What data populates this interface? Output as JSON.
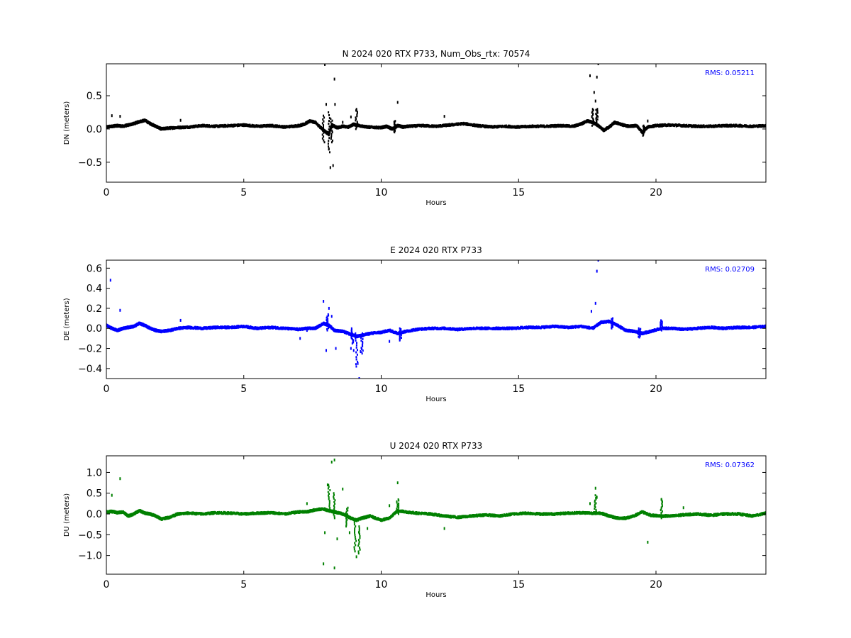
{
  "chart_data": [
    {
      "type": "scatter",
      "title": "N 2024 020 RTX  P733, Num_Obs_rtx: 70574",
      "xlabel": "Hours",
      "ylabel": "DN (meters)",
      "xlim": [
        0,
        24
      ],
      "ylim": [
        -0.8,
        0.98
      ],
      "xticks": [
        0,
        5,
        10,
        15,
        20
      ],
      "xtick_labels": [
        "0",
        "5",
        "10",
        "15",
        "20"
      ],
      "yticks": [
        -0.5,
        0.0,
        0.5
      ],
      "ytick_labels": [
        "−0.5",
        "0.0",
        "0.5"
      ],
      "color": "#000000",
      "grid": false,
      "annotation": "RMS:  0.05211",
      "annotation_color": "#0000ff",
      "series": [
        {
          "x": [
            0.0,
            0.2,
            0.4,
            0.6,
            0.8,
            1.0,
            1.2,
            1.4,
            1.6,
            1.8,
            2.0,
            2.2,
            2.5,
            3.0,
            3.5,
            4.0,
            4.5,
            5.0,
            5.5,
            6.0,
            6.5,
            7.0,
            7.2,
            7.4,
            7.6,
            7.8,
            8.0,
            8.1,
            8.2,
            8.4,
            8.6,
            8.8,
            9.0,
            9.2,
            9.5,
            10.0,
            10.2,
            10.4,
            10.6,
            10.8,
            11.0,
            11.5,
            12.0,
            12.5,
            13.0,
            13.5,
            14.0,
            14.5,
            15.0,
            15.5,
            16.0,
            16.5,
            17.0,
            17.3,
            17.5,
            17.7,
            17.9,
            18.1,
            18.3,
            18.5,
            18.8,
            19.0,
            19.3,
            19.5,
            19.7,
            20.0,
            20.5,
            21.0,
            21.5,
            22.0,
            22.5,
            23.0,
            23.5,
            24.0
          ],
          "y": [
            0.03,
            0.04,
            0.05,
            0.04,
            0.06,
            0.08,
            0.11,
            0.13,
            0.08,
            0.04,
            0.0,
            0.01,
            0.02,
            0.03,
            0.05,
            0.04,
            0.05,
            0.06,
            0.04,
            0.05,
            0.03,
            0.05,
            0.07,
            0.12,
            0.1,
            0.02,
            -0.05,
            -0.08,
            0.06,
            0.02,
            0.04,
            0.03,
            0.07,
            0.05,
            0.03,
            0.02,
            0.04,
            0.0,
            0.05,
            0.03,
            0.04,
            0.05,
            0.04,
            0.06,
            0.08,
            0.05,
            0.03,
            0.04,
            0.03,
            0.04,
            0.04,
            0.05,
            0.04,
            0.08,
            0.12,
            0.1,
            0.05,
            -0.02,
            0.03,
            0.1,
            0.06,
            0.04,
            0.05,
            -0.05,
            0.03,
            0.05,
            0.06,
            0.05,
            0.04,
            0.04,
            0.05,
            0.05,
            0.04,
            0.05
          ]
        }
      ],
      "outliers": {
        "x": [
          0.2,
          0.5,
          2.7,
          7.95,
          8.0,
          8.1,
          8.15,
          8.25,
          8.3,
          8.32,
          8.6,
          8.9,
          9.1,
          10.6,
          12.3,
          17.6,
          17.75,
          17.8,
          17.85,
          17.9,
          19.7
        ],
        "y": [
          0.2,
          0.19,
          0.13,
          0.97,
          0.37,
          -0.3,
          -0.58,
          -0.55,
          0.75,
          0.37,
          0.1,
          0.18,
          0.28,
          0.4,
          0.19,
          0.8,
          0.55,
          0.42,
          0.78,
          0.98,
          0.12
        ]
      },
      "ranges": [
        {
          "x": 7.9,
          "ymin": -0.2,
          "ymax": 0.2
        },
        {
          "x": 8.1,
          "ymin": -0.35,
          "ymax": 0.25
        },
        {
          "x": 8.2,
          "ymin": -0.2,
          "ymax": 0.15
        },
        {
          "x": 9.1,
          "ymin": 0.0,
          "ymax": 0.3
        },
        {
          "x": 10.5,
          "ymin": -0.05,
          "ymax": 0.12
        },
        {
          "x": 17.7,
          "ymin": 0.05,
          "ymax": 0.3
        },
        {
          "x": 17.85,
          "ymin": 0.1,
          "ymax": 0.3
        },
        {
          "x": 19.55,
          "ymin": -0.1,
          "ymax": 0.05
        }
      ]
    },
    {
      "type": "scatter",
      "title": "E 2024 020 RTX  P733",
      "xlabel": "Hours",
      "ylabel": "DE (meters)",
      "xlim": [
        0,
        24
      ],
      "ylim": [
        -0.5,
        0.68
      ],
      "xticks": [
        0,
        5,
        10,
        15,
        20
      ],
      "xtick_labels": [
        "0",
        "5",
        "10",
        "15",
        "20"
      ],
      "yticks": [
        -0.4,
        -0.2,
        0.0,
        0.2,
        0.4,
        0.6
      ],
      "ytick_labels": [
        "−0.4",
        "−0.2",
        "0.0",
        "0.2",
        "0.4",
        "0.6"
      ],
      "color": "#0000ff",
      "grid": false,
      "annotation": "RMS:  0.02709",
      "annotation_color": "#0000ff",
      "series": [
        {
          "x": [
            0.0,
            0.2,
            0.4,
            0.6,
            0.8,
            1.0,
            1.2,
            1.4,
            1.6,
            1.8,
            2.0,
            2.3,
            2.6,
            3.0,
            3.5,
            4.0,
            4.5,
            5.0,
            5.5,
            6.0,
            6.5,
            7.0,
            7.3,
            7.6,
            7.9,
            8.1,
            8.3,
            8.6,
            8.9,
            9.1,
            9.3,
            9.6,
            10.0,
            10.3,
            10.6,
            10.9,
            11.3,
            11.8,
            12.3,
            12.8,
            13.3,
            13.8,
            14.3,
            14.8,
            15.3,
            15.8,
            16.3,
            16.8,
            17.3,
            17.7,
            18.0,
            18.3,
            18.6,
            18.9,
            19.2,
            19.5,
            19.8,
            20.2,
            20.6,
            21.0,
            21.5,
            22.0,
            22.5,
            23.0,
            23.5,
            24.0
          ],
          "y": [
            0.03,
            0.0,
            -0.02,
            0.0,
            0.01,
            0.02,
            0.05,
            0.03,
            0.0,
            -0.02,
            -0.03,
            -0.02,
            0.0,
            0.01,
            0.0,
            0.01,
            0.01,
            0.02,
            0.0,
            0.01,
            0.0,
            -0.01,
            0.0,
            0.0,
            0.05,
            0.03,
            -0.02,
            -0.03,
            -0.06,
            -0.08,
            -0.07,
            -0.05,
            -0.04,
            -0.02,
            -0.05,
            -0.03,
            -0.01,
            0.0,
            0.0,
            -0.01,
            0.0,
            0.0,
            0.0,
            0.0,
            0.01,
            0.01,
            0.02,
            0.01,
            0.02,
            0.0,
            0.06,
            0.07,
            0.03,
            -0.02,
            -0.03,
            -0.05,
            -0.03,
            0.0,
            0.0,
            -0.01,
            0.0,
            0.01,
            0.0,
            0.01,
            0.01,
            0.02
          ]
        }
      ],
      "outliers": {
        "x": [
          0.15,
          0.5,
          2.7,
          7.05,
          7.3,
          7.9,
          8.0,
          8.1,
          8.2,
          8.35,
          8.9,
          9.0,
          9.15,
          9.2,
          9.25,
          10.3,
          17.65,
          17.8,
          17.85,
          17.9
        ],
        "y": [
          0.48,
          0.18,
          0.08,
          -0.1,
          -0.02,
          0.27,
          -0.22,
          0.2,
          0.12,
          -0.2,
          -0.2,
          -0.22,
          -0.35,
          -0.5,
          -0.23,
          -0.13,
          0.17,
          0.25,
          0.57,
          0.68
        ]
      },
      "ranges": [
        {
          "x": 8.05,
          "ymin": -0.02,
          "ymax": 0.14
        },
        {
          "x": 8.95,
          "ymin": -0.15,
          "ymax": 0.0
        },
        {
          "x": 9.1,
          "ymin": -0.38,
          "ymax": -0.05
        },
        {
          "x": 9.3,
          "ymin": -0.25,
          "ymax": -0.05
        },
        {
          "x": 10.7,
          "ymin": -0.12,
          "ymax": 0.0
        },
        {
          "x": 18.4,
          "ymin": 0.0,
          "ymax": 0.1
        },
        {
          "x": 20.2,
          "ymin": -0.02,
          "ymax": 0.08
        },
        {
          "x": 19.4,
          "ymin": -0.09,
          "ymax": 0.0
        }
      ]
    },
    {
      "type": "scatter",
      "title": "U 2024 020 RTX  P733",
      "xlabel": "Hours",
      "ylabel": "DU (meters)",
      "xlim": [
        0,
        24
      ],
      "ylim": [
        -1.45,
        1.4
      ],
      "xticks": [
        0,
        5,
        10,
        15,
        20
      ],
      "xtick_labels": [
        "0",
        "5",
        "10",
        "15",
        "20"
      ],
      "yticks": [
        -1.0,
        -0.5,
        0.0,
        0.5,
        1.0
      ],
      "ytick_labels": [
        "−1.0",
        "−0.5",
        "0.0",
        "0.5",
        "1.0"
      ],
      "color": "#008000",
      "grid": false,
      "annotation": "RMS:  0.07362",
      "annotation_color": "#0000ff",
      "series": [
        {
          "x": [
            0.0,
            0.2,
            0.4,
            0.6,
            0.8,
            1.0,
            1.2,
            1.4,
            1.6,
            1.8,
            2.0,
            2.3,
            2.6,
            3.0,
            3.5,
            4.0,
            4.5,
            5.0,
            5.5,
            6.0,
            6.5,
            7.0,
            7.3,
            7.6,
            7.9,
            8.1,
            8.3,
            8.6,
            8.9,
            9.1,
            9.3,
            9.6,
            10.0,
            10.3,
            10.6,
            10.9,
            11.3,
            11.8,
            12.3,
            12.8,
            13.3,
            13.8,
            14.3,
            14.8,
            15.3,
            15.8,
            16.3,
            16.8,
            17.3,
            17.7,
            18.0,
            18.3,
            18.6,
            18.9,
            19.2,
            19.5,
            19.8,
            20.2,
            20.6,
            21.0,
            21.5,
            22.0,
            22.5,
            23.0,
            23.5,
            24.0
          ],
          "y": [
            0.05,
            0.06,
            0.03,
            0.05,
            -0.05,
            0.0,
            0.08,
            0.02,
            0.0,
            -0.05,
            -0.12,
            -0.08,
            0.0,
            0.02,
            0.0,
            0.03,
            0.02,
            0.0,
            0.02,
            0.03,
            0.0,
            0.05,
            0.05,
            0.1,
            0.12,
            0.08,
            0.05,
            0.0,
            -0.1,
            -0.15,
            -0.1,
            -0.05,
            -0.15,
            -0.1,
            0.08,
            0.05,
            0.02,
            0.0,
            -0.05,
            -0.08,
            -0.05,
            -0.02,
            -0.05,
            0.0,
            0.02,
            0.0,
            0.0,
            0.02,
            0.03,
            0.02,
            0.02,
            -0.05,
            -0.1,
            -0.1,
            -0.05,
            0.05,
            -0.03,
            -0.05,
            -0.05,
            -0.02,
            0.0,
            -0.03,
            0.0,
            0.0,
            -0.05,
            0.02
          ]
        }
      ],
      "outliers": {
        "x": [
          0.2,
          0.5,
          7.3,
          7.9,
          7.95,
          8.05,
          8.2,
          8.3,
          8.3,
          8.4,
          8.6,
          8.85,
          9.1,
          9.2,
          9.5,
          10.3,
          10.6,
          12.3,
          17.6,
          17.8,
          17.85,
          19.7,
          20.2,
          21.0
        ],
        "y": [
          0.45,
          0.85,
          0.25,
          -1.2,
          -0.45,
          0.7,
          1.25,
          1.3,
          -1.3,
          -0.6,
          0.6,
          -0.45,
          -1.03,
          -0.45,
          -0.35,
          0.2,
          0.75,
          -0.35,
          0.25,
          0.62,
          0.4,
          -0.68,
          0.35,
          0.15
        ]
      },
      "ranges": [
        {
          "x": 8.1,
          "ymin": 0.1,
          "ymax": 0.7
        },
        {
          "x": 8.3,
          "ymin": -0.1,
          "ymax": 0.5
        },
        {
          "x": 9.05,
          "ymin": -0.9,
          "ymax": -0.2
        },
        {
          "x": 9.2,
          "ymin": -0.95,
          "ymax": -0.3
        },
        {
          "x": 8.75,
          "ymin": -0.3,
          "ymax": 0.15
        },
        {
          "x": 10.6,
          "ymin": 0.0,
          "ymax": 0.35
        },
        {
          "x": 17.8,
          "ymin": 0.0,
          "ymax": 0.45
        },
        {
          "x": 20.2,
          "ymin": -0.1,
          "ymax": 0.35
        }
      ]
    }
  ]
}
